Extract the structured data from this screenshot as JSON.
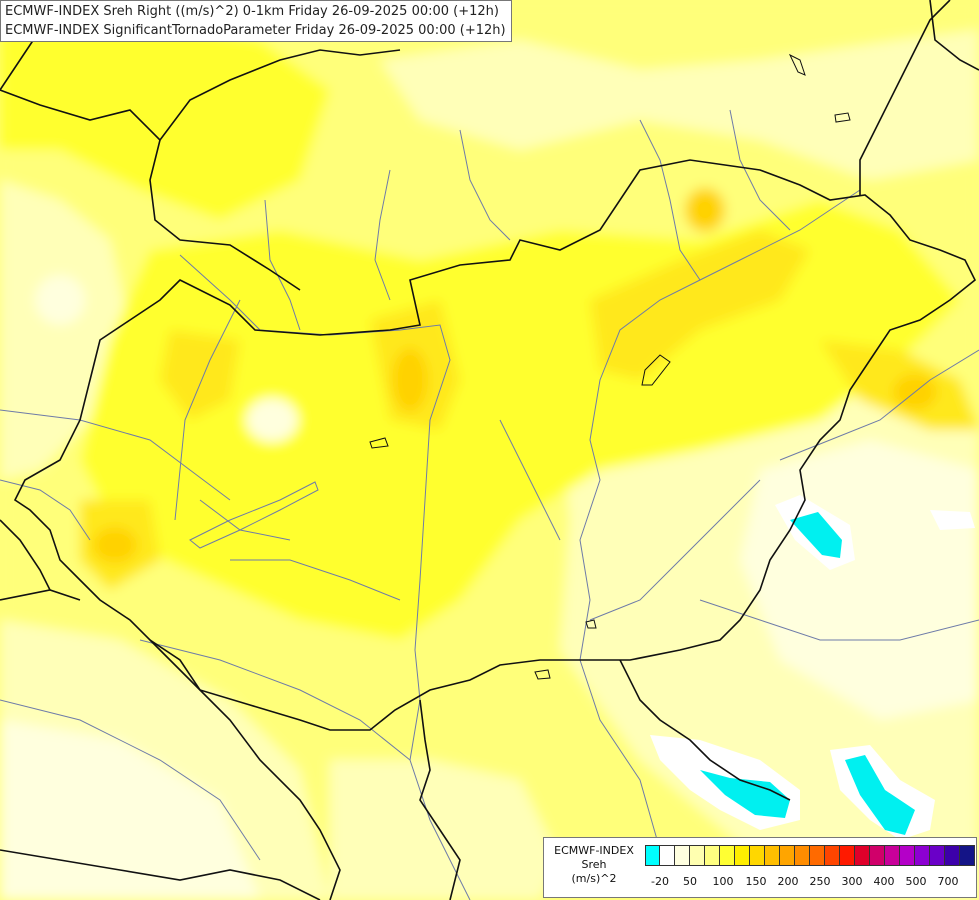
{
  "titles": {
    "line1": "ECMWF-INDEX Sreh Right ((m/s)^2) 0-1km Friday 26-09-2025 00:00 (+12h)",
    "line2": "ECMWF-INDEX SignificantTornadoParameter Friday 26-09-2025 00:00 (+12h)"
  },
  "legend": {
    "caption_line1": "ECMWF-INDEX",
    "caption_line2": "Sreh",
    "caption_line3": "(m/s)^2",
    "colors": [
      "#00ffff",
      "#ffffff",
      "#ffffe0",
      "#ffffb0",
      "#ffff80",
      "#ffff33",
      "#ffee00",
      "#ffd700",
      "#ffbe00",
      "#ffa500",
      "#ff8c00",
      "#ff6a00",
      "#ff4500",
      "#ff1a00",
      "#e0002a",
      "#d0006a",
      "#c8009a",
      "#b400c8",
      "#8c00d2",
      "#6a00c8",
      "#3c00aa",
      "#141487"
    ],
    "ticks": [
      "-20",
      "50",
      "100",
      "150",
      "200",
      "250",
      "300",
      "400",
      "500",
      "700"
    ]
  },
  "map_colors": {
    "background": "#ffff7a",
    "pale": "#ffffb8",
    "very_pale": "#ffffde",
    "yellow": "#ffff2e",
    "gold": "#ffe81a",
    "orange": "#ffd200",
    "cyan": "#00f0f0",
    "white": "#ffffff",
    "border": "#111111",
    "river": "#6e7ba8"
  }
}
